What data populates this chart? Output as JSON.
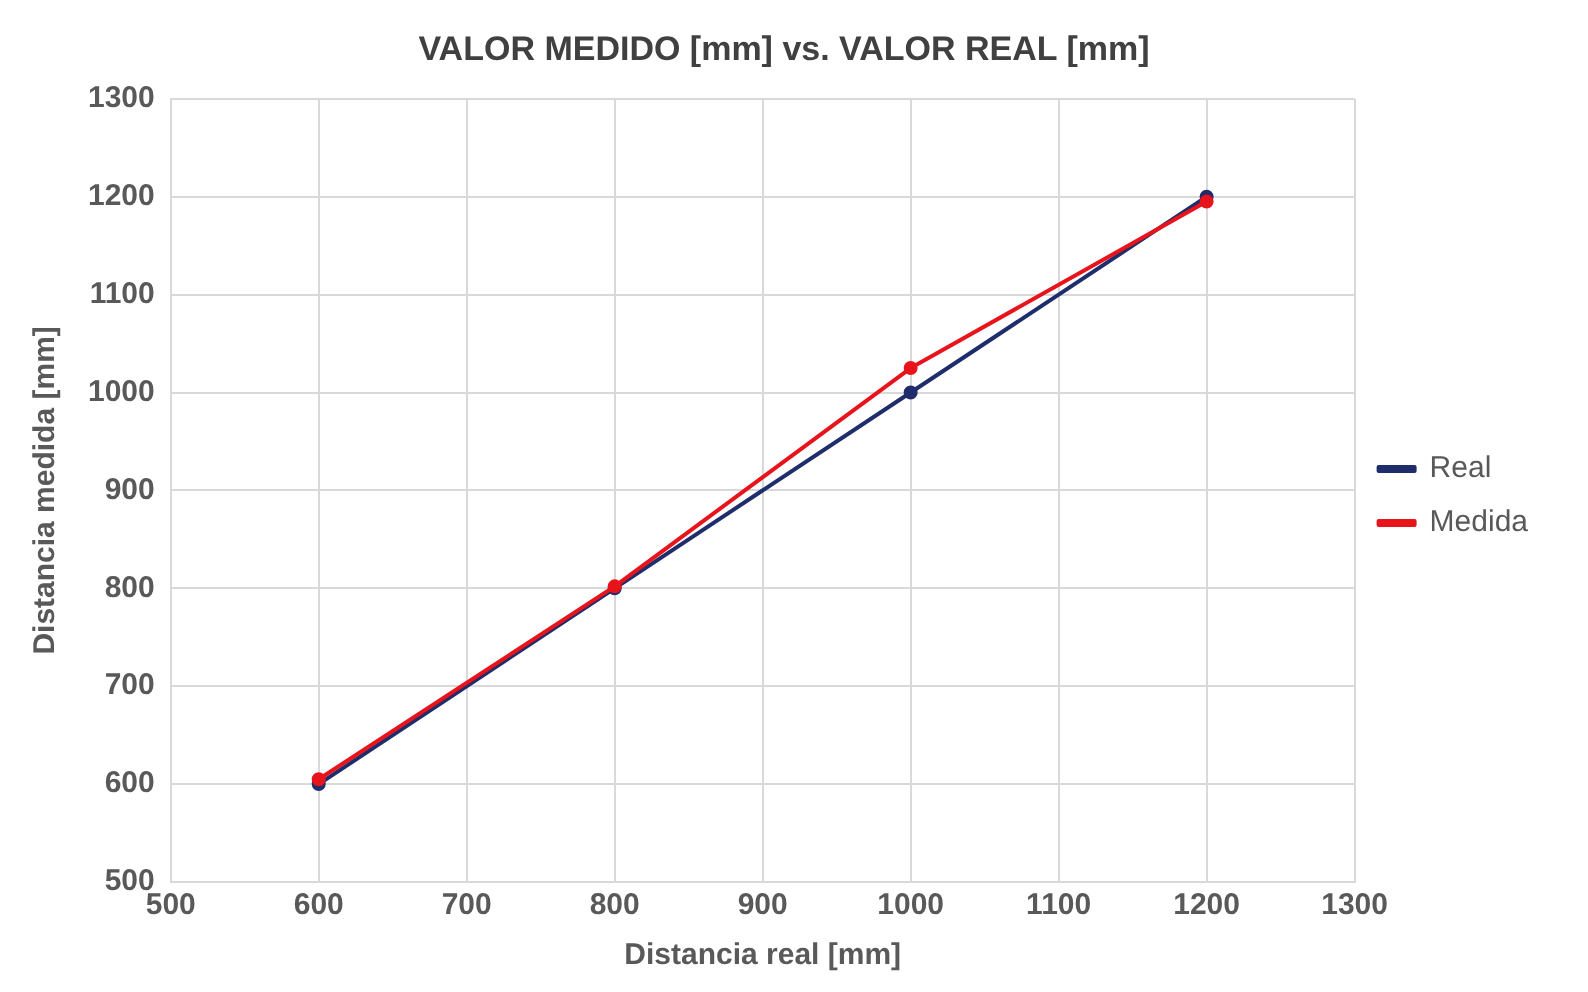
{
  "chart_data": {
    "type": "line",
    "title": "VALOR MEDIDO [mm] vs. VALOR REAL [mm]",
    "xlabel": "Distancia real [mm]",
    "ylabel": "Distancia medida [mm]",
    "x": [
      600,
      800,
      1000,
      1200
    ],
    "series": [
      {
        "name": "Real",
        "color": "#1f2d6b",
        "values": [
          600,
          800,
          1000,
          1200
        ]
      },
      {
        "name": "Medida",
        "color": "#e8141b",
        "values": [
          605,
          802,
          1025,
          1195
        ]
      }
    ],
    "xlim": [
      500,
      1300
    ],
    "xticks": [
      500,
      600,
      700,
      800,
      900,
      1000,
      1100,
      1200,
      1300
    ],
    "ylim": [
      500,
      1300
    ],
    "yticks": [
      500,
      600,
      700,
      800,
      900,
      1000,
      1100,
      1200,
      1300
    ],
    "grid": true,
    "legend": "right",
    "marker": "circle",
    "line_style": "solid"
  }
}
